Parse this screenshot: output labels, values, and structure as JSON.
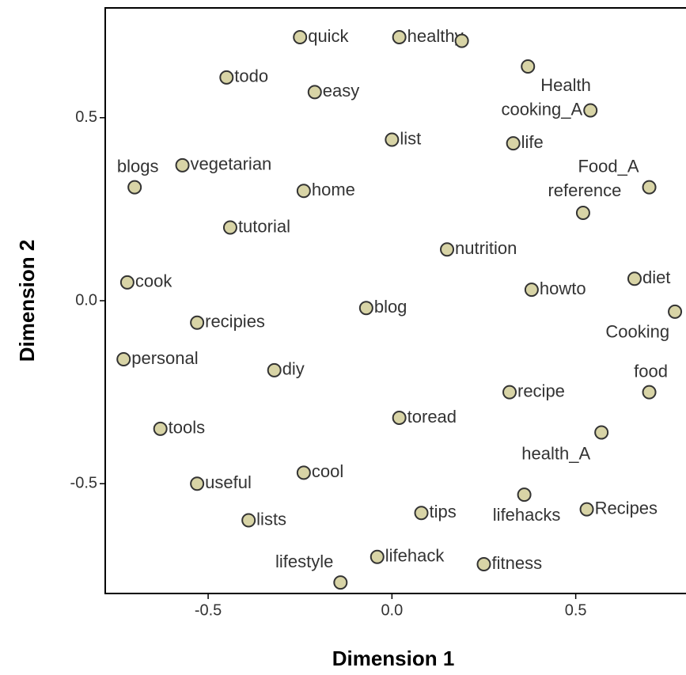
{
  "chart_data": {
    "type": "scatter",
    "xlabel": "Dimension 1",
    "ylabel": "Dimension 2",
    "labels": [
      "quick",
      "healthy",
      null,
      "Health",
      "todo",
      "easy",
      "cooking_A",
      "list",
      "life",
      "vegetarian",
      "blogs",
      "home",
      "Food_A",
      "reference",
      "tutorial",
      "nutrition",
      "cook",
      "diet",
      "howto",
      "blog",
      "Cooking",
      "recipies",
      "personal",
      "diy",
      "food",
      "recipe",
      "toread",
      "tools",
      "health_A",
      "cool",
      "useful",
      "lifehacks",
      "Recipes",
      "tips",
      "lists",
      "lifehack",
      "fitness",
      "lifestyle"
    ],
    "x": [
      -0.25,
      0.02,
      0.19,
      0.37,
      -0.45,
      -0.21,
      0.54,
      0.0,
      0.33,
      -0.57,
      -0.7,
      -0.24,
      0.7,
      0.52,
      -0.44,
      0.15,
      -0.72,
      0.66,
      0.38,
      -0.07,
      0.77,
      -0.53,
      -0.73,
      -0.32,
      0.7,
      0.32,
      0.02,
      -0.63,
      0.57,
      -0.24,
      -0.53,
      0.36,
      0.53,
      0.08,
      -0.39,
      -0.04,
      0.25,
      -0.14
    ],
    "y": [
      0.72,
      0.72,
      0.71,
      0.64,
      0.61,
      0.57,
      0.52,
      0.44,
      0.43,
      0.37,
      0.31,
      0.3,
      0.31,
      0.24,
      0.2,
      0.14,
      0.05,
      0.06,
      0.03,
      -0.02,
      -0.03,
      -0.06,
      -0.16,
      -0.19,
      -0.25,
      -0.25,
      -0.32,
      -0.35,
      -0.36,
      -0.47,
      -0.5,
      -0.53,
      -0.57,
      -0.58,
      -0.6,
      -0.7,
      -0.72,
      -0.77
    ],
    "color": "#d8d4a6",
    "xlim": [
      -0.78,
      0.8
    ],
    "ylim": [
      -0.8,
      0.8
    ],
    "xticks": [
      -0.5,
      {
        "value": 0,
        "label": "0.0"
      },
      0.5
    ],
    "yticks": [
      -0.5,
      {
        "value": 0,
        "label": "0.0"
      },
      0.5
    ]
  }
}
